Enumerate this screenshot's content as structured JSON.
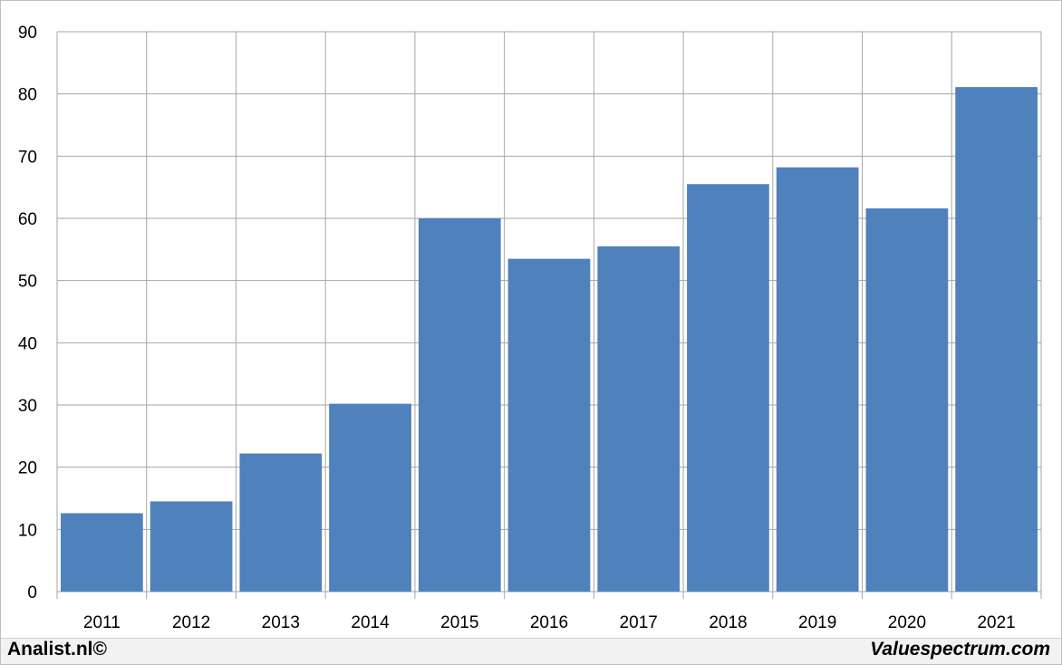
{
  "footer": {
    "left_text": "Analist.nl©",
    "right_text": "Valuespectrum.com"
  },
  "colors": {
    "bar": "#4f81bd",
    "grid": "#a6a6a6",
    "axis_text": "#000000"
  },
  "chart_data": {
    "type": "bar",
    "categories": [
      "2011",
      "2012",
      "2013",
      "2014",
      "2015",
      "2016",
      "2017",
      "2018",
      "2019",
      "2020",
      "2021"
    ],
    "values": [
      12.6,
      14.5,
      22.2,
      30.2,
      60.0,
      53.5,
      55.5,
      65.5,
      68.2,
      61.6,
      81.1
    ],
    "y_ticks": [
      "0",
      "10",
      "20",
      "30",
      "40",
      "50",
      "60",
      "70",
      "80",
      "90"
    ],
    "ylim": [
      0,
      90
    ],
    "grid": true,
    "legend": false
  }
}
